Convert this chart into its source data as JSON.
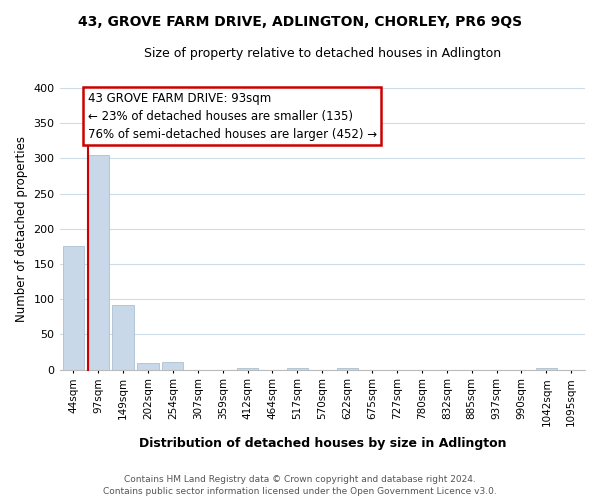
{
  "title_line1": "43, GROVE FARM DRIVE, ADLINGTON, CHORLEY, PR6 9QS",
  "title_line2": "Size of property relative to detached houses in Adlington",
  "xlabel": "Distribution of detached houses by size in Adlington",
  "ylabel": "Number of detached properties",
  "bar_labels": [
    "44sqm",
    "97sqm",
    "149sqm",
    "202sqm",
    "254sqm",
    "307sqm",
    "359sqm",
    "412sqm",
    "464sqm",
    "517sqm",
    "570sqm",
    "622sqm",
    "675sqm",
    "727sqm",
    "780sqm",
    "832sqm",
    "885sqm",
    "937sqm",
    "990sqm",
    "1042sqm",
    "1095sqm"
  ],
  "bar_values": [
    175,
    305,
    92,
    10,
    11,
    0,
    0,
    2,
    0,
    2,
    0,
    2,
    0,
    0,
    0,
    0,
    0,
    0,
    0,
    2,
    0
  ],
  "bar_color": "#c8d8e8",
  "bar_edge_color": "#a0b8cc",
  "subject_line_color": "#cc0000",
  "ylim": [
    0,
    400
  ],
  "yticks": [
    0,
    50,
    100,
    150,
    200,
    250,
    300,
    350,
    400
  ],
  "annotation_line1": "43 GROVE FARM DRIVE: 93sqm",
  "annotation_line2": "← 23% of detached houses are smaller (135)",
  "annotation_line3": "76% of semi-detached houses are larger (452) →",
  "footer_line1": "Contains HM Land Registry data © Crown copyright and database right 2024.",
  "footer_line2": "Contains public sector information licensed under the Open Government Licence v3.0.",
  "background_color": "#ffffff",
  "grid_color": "#ccdde8",
  "box_face_color": "#ffffff",
  "box_edge_color": "#cc0000"
}
